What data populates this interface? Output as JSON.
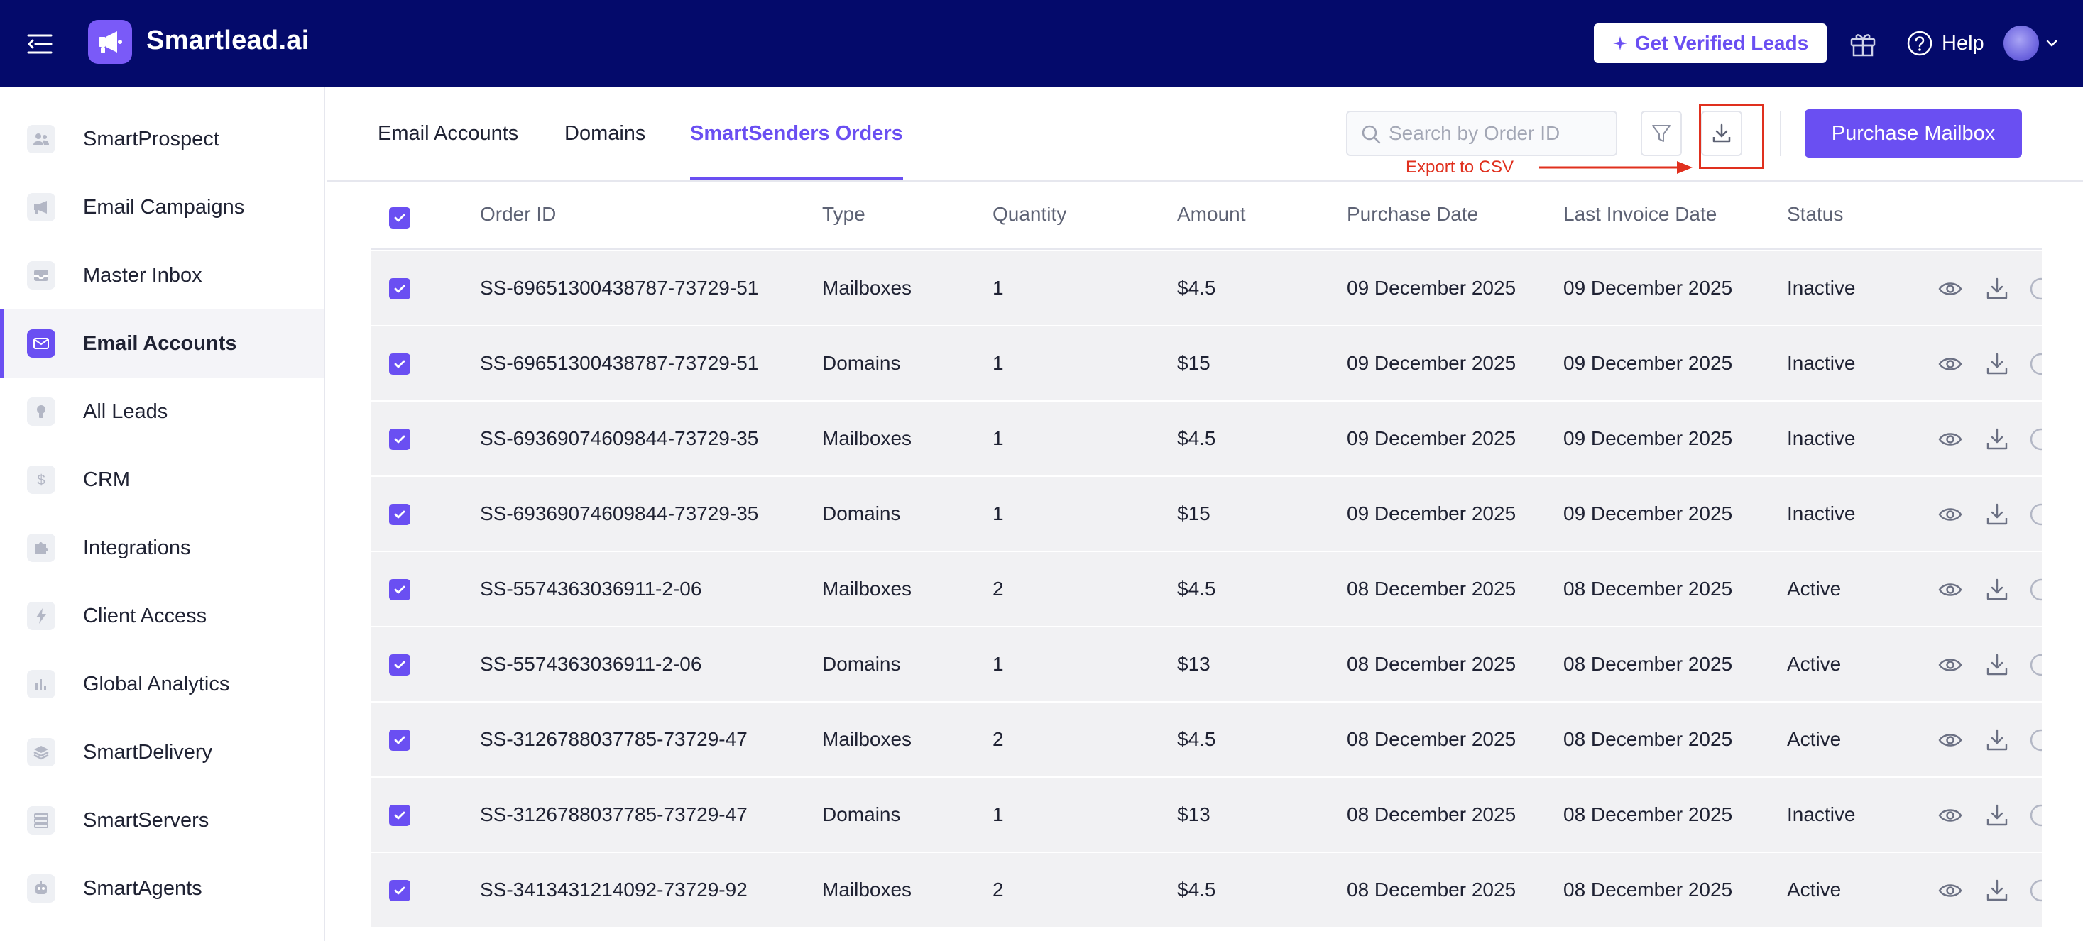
{
  "app": {
    "name": "Smartlead.ai",
    "get_leads_label": "Get Verified Leads",
    "help_label": "Help"
  },
  "sidebar": {
    "items": [
      {
        "label": "SmartProspect",
        "icon": "users-icon",
        "active": false
      },
      {
        "label": "Email Campaigns",
        "icon": "megaphone-icon",
        "active": false
      },
      {
        "label": "Master Inbox",
        "icon": "inbox-icon",
        "active": false
      },
      {
        "label": "Email Accounts",
        "icon": "mail-icon",
        "active": true
      },
      {
        "label": "All Leads",
        "icon": "bulb-icon",
        "active": false
      },
      {
        "label": "CRM",
        "icon": "dollar-icon",
        "active": false
      },
      {
        "label": "Integrations",
        "icon": "puzzle-icon",
        "active": false
      },
      {
        "label": "Client Access",
        "icon": "bolt-icon",
        "active": false
      },
      {
        "label": "Global Analytics",
        "icon": "bar-chart-icon",
        "active": false
      },
      {
        "label": "SmartDelivery",
        "icon": "layers-icon",
        "active": false
      },
      {
        "label": "SmartServers",
        "icon": "server-icon",
        "active": false
      },
      {
        "label": "SmartAgents",
        "icon": "robot-icon",
        "active": false
      }
    ]
  },
  "tabs": [
    {
      "label": "Email Accounts",
      "active": false
    },
    {
      "label": "Domains",
      "active": false
    },
    {
      "label": "SmartSenders Orders",
      "active": true
    }
  ],
  "toolbar": {
    "search_placeholder": "Search by Order ID",
    "purchase_label": "Purchase Mailbox",
    "export_annotation": "Export to CSV"
  },
  "table": {
    "headers": [
      "Order ID",
      "Type",
      "Quantity",
      "Amount",
      "Purchase Date",
      "Last Invoice Date",
      "Status"
    ],
    "rows": [
      {
        "order_id": "SS-69651300438787-73729-51",
        "type": "Mailboxes",
        "quantity": "1",
        "amount": "$4.5",
        "purchase_date": "09 December 2025",
        "last_invoice_date": "09 December 2025",
        "status": "Inactive"
      },
      {
        "order_id": "SS-69651300438787-73729-51",
        "type": "Domains",
        "quantity": "1",
        "amount": "$15",
        "purchase_date": "09 December 2025",
        "last_invoice_date": "09 December 2025",
        "status": "Inactive"
      },
      {
        "order_id": "SS-69369074609844-73729-35",
        "type": "Mailboxes",
        "quantity": "1",
        "amount": "$4.5",
        "purchase_date": "09 December 2025",
        "last_invoice_date": "09 December 2025",
        "status": "Inactive"
      },
      {
        "order_id": "SS-69369074609844-73729-35",
        "type": "Domains",
        "quantity": "1",
        "amount": "$15",
        "purchase_date": "09 December 2025",
        "last_invoice_date": "09 December 2025",
        "status": "Inactive"
      },
      {
        "order_id": "SS-5574363036911-2-06",
        "type": "Mailboxes",
        "quantity": "2",
        "amount": "$4.5",
        "purchase_date": "08 December 2025",
        "last_invoice_date": "08 December 2025",
        "status": "Active"
      },
      {
        "order_id": "SS-5574363036911-2-06",
        "type": "Domains",
        "quantity": "1",
        "amount": "$13",
        "purchase_date": "08 December 2025",
        "last_invoice_date": "08 December 2025",
        "status": "Active"
      },
      {
        "order_id": "SS-3126788037785-73729-47",
        "type": "Mailboxes",
        "quantity": "2",
        "amount": "$4.5",
        "purchase_date": "08 December 2025",
        "last_invoice_date": "08 December 2025",
        "status": "Active"
      },
      {
        "order_id": "SS-3126788037785-73729-47",
        "type": "Domains",
        "quantity": "1",
        "amount": "$13",
        "purchase_date": "08 December 2025",
        "last_invoice_date": "08 December 2025",
        "status": "Inactive"
      },
      {
        "order_id": "SS-3413431214092-73729-92",
        "type": "Mailboxes",
        "quantity": "2",
        "amount": "$4.5",
        "purchase_date": "08 December 2025",
        "last_invoice_date": "08 December 2025",
        "status": "Active"
      }
    ]
  },
  "colors": {
    "topbar": "#040a6b",
    "accent": "#6a4ff2",
    "annotation": "#e0301e"
  }
}
